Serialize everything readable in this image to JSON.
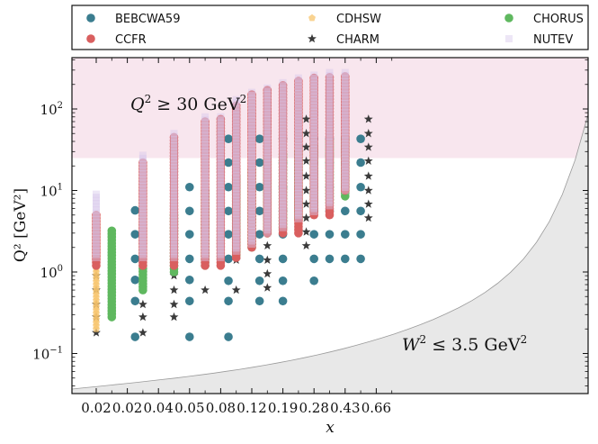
{
  "chart_data": {
    "type": "scatter",
    "xlabel": "x",
    "ylabel": "Q² [GeV²]",
    "yscale": "log",
    "ylim": [
      0.035,
      400
    ],
    "y_ticks": [
      {
        "value": 0.1,
        "base": "10",
        "exp": "−1"
      },
      {
        "value": 1,
        "base": "10",
        "exp": "0"
      },
      {
        "value": 10,
        "base": "10",
        "exp": "1"
      },
      {
        "value": 100,
        "base": "10",
        "exp": "2"
      }
    ],
    "x_categories": [
      "0.02",
      "0.02",
      "0.04",
      "0.05",
      "0.08",
      "0.12",
      "0.19",
      "0.28",
      "0.43",
      "0.66"
    ],
    "x_category_count": 20,
    "annotations": {
      "upper": {
        "lhs": "Q",
        "sup": "2",
        "rel": " ≥ 30 GeV",
        "sup2": "2"
      },
      "lower": {
        "lhs": "W",
        "sup": "2",
        "rel": " ≤ 3.5 GeV",
        "sup2": "2"
      }
    },
    "shaded_regions": [
      {
        "name": "Q2 >= 30",
        "y_min": 25,
        "color": "#f8e6ee"
      },
      {
        "name": "W2 <= 3.5",
        "bound": "W2 = 3.5 GeV2",
        "color": "#e8e8e8"
      }
    ],
    "series": [
      {
        "name": "BEBCWA59",
        "color": "#3b7d8f",
        "marker": "circle",
        "points": [
          [
            2.5,
            5.7
          ],
          [
            2.5,
            2.9
          ],
          [
            2.5,
            1.45
          ],
          [
            2.5,
            0.8
          ],
          [
            2.5,
            0.44
          ],
          [
            2.5,
            0.16
          ],
          [
            6,
            11
          ],
          [
            6,
            5.6
          ],
          [
            6,
            2.9
          ],
          [
            6,
            1.45
          ],
          [
            6,
            0.8
          ],
          [
            6,
            0.44
          ],
          [
            6,
            0.16
          ],
          [
            8.5,
            43
          ],
          [
            8.5,
            22
          ],
          [
            8.5,
            11
          ],
          [
            8.5,
            5.6
          ],
          [
            8.5,
            2.9
          ],
          [
            8.5,
            1.45
          ],
          [
            8.5,
            0.78
          ],
          [
            8.5,
            0.44
          ],
          [
            8.5,
            0.16
          ],
          [
            10.5,
            43
          ],
          [
            10.5,
            22
          ],
          [
            10.5,
            11
          ],
          [
            10.5,
            5.6
          ],
          [
            10.5,
            2.9
          ],
          [
            10.5,
            1.45
          ],
          [
            10.5,
            0.78
          ],
          [
            10.5,
            0.44
          ],
          [
            12,
            43
          ],
          [
            12,
            22
          ],
          [
            12,
            11
          ],
          [
            12,
            5.6
          ],
          [
            12,
            2.9
          ],
          [
            12,
            1.45
          ],
          [
            12,
            0.78
          ],
          [
            12,
            0.44
          ],
          [
            14,
            43
          ],
          [
            14,
            22
          ],
          [
            14,
            11
          ],
          [
            14,
            5.6
          ],
          [
            14,
            2.9
          ],
          [
            14,
            1.45
          ],
          [
            14,
            0.78
          ],
          [
            15,
            43
          ],
          [
            15,
            22
          ],
          [
            15,
            11
          ],
          [
            15,
            5.6
          ],
          [
            15,
            2.9
          ],
          [
            15,
            1.45
          ],
          [
            16,
            43
          ],
          [
            16,
            22
          ],
          [
            16,
            11
          ],
          [
            16,
            5.6
          ],
          [
            16,
            2.9
          ],
          [
            16,
            1.45
          ],
          [
            17,
            43
          ],
          [
            17,
            22
          ],
          [
            17,
            11
          ],
          [
            17,
            5.6
          ],
          [
            17,
            2.9
          ],
          [
            17,
            1.45
          ]
        ]
      },
      {
        "name": "CCFR",
        "color": "#d95f5f",
        "marker": "circle",
        "columns": [
          [
            0,
            1.2,
            5.0
          ],
          [
            3,
            1.2,
            22
          ],
          [
            5,
            1.2,
            45
          ],
          [
            7,
            1.2,
            70
          ],
          [
            8,
            1.2,
            75
          ],
          [
            9,
            1.5,
            110
          ],
          [
            10,
            2.0,
            150
          ],
          [
            11,
            3.0,
            170
          ],
          [
            12,
            3.0,
            195
          ],
          [
            13,
            3.0,
            220
          ],
          [
            14,
            5.0,
            240
          ],
          [
            15,
            5.0,
            245
          ],
          [
            16,
            10,
            250
          ]
        ]
      },
      {
        "name": "CDHSW",
        "color": "#f7c46c",
        "marker": "pentagon",
        "columns": [
          [
            0,
            0.2,
            5.0
          ],
          [
            3,
            0.7,
            20
          ]
        ]
      },
      {
        "name": "CHARM",
        "color": "#3a3a3a",
        "marker": "star",
        "points": [
          [
            0,
            0.9
          ],
          [
            0,
            0.6
          ],
          [
            0,
            0.4
          ],
          [
            0,
            0.28
          ],
          [
            0,
            0.18
          ],
          [
            3,
            0.9
          ],
          [
            3,
            0.6
          ],
          [
            3,
            0.4
          ],
          [
            3,
            0.28
          ],
          [
            3,
            0.18
          ],
          [
            5,
            0.9
          ],
          [
            5,
            0.6
          ],
          [
            5,
            0.4
          ],
          [
            5,
            0.28
          ],
          [
            7,
            2.8
          ],
          [
            7,
            1.4
          ],
          [
            7,
            0.6
          ],
          [
            9,
            3.0
          ],
          [
            9,
            1.4
          ],
          [
            9,
            0.6
          ],
          [
            11,
            50
          ],
          [
            11,
            34
          ],
          [
            11,
            23
          ],
          [
            11,
            15
          ],
          [
            11,
            10
          ],
          [
            11,
            6.8
          ],
          [
            11,
            4.6
          ],
          [
            11,
            3.1
          ],
          [
            11,
            2.1
          ],
          [
            11,
            1.4
          ],
          [
            11,
            0.95
          ],
          [
            11,
            0.64
          ],
          [
            13.5,
            75
          ],
          [
            13.5,
            50
          ],
          [
            13.5,
            34
          ],
          [
            13.5,
            23
          ],
          [
            13.5,
            15
          ],
          [
            13.5,
            10
          ],
          [
            13.5,
            6.8
          ],
          [
            13.5,
            4.6
          ],
          [
            13.5,
            3.1
          ],
          [
            13.5,
            2.1
          ],
          [
            17.5,
            75
          ],
          [
            17.5,
            50
          ],
          [
            17.5,
            34
          ],
          [
            17.5,
            23
          ],
          [
            17.5,
            15
          ],
          [
            17.5,
            10
          ],
          [
            17.5,
            6.8
          ],
          [
            17.5,
            4.6
          ]
        ]
      },
      {
        "name": "CHORUS",
        "color": "#5fb85f",
        "marker": "circle",
        "columns": [
          [
            1,
            0.28,
            3.2
          ],
          [
            3,
            0.6,
            1.2
          ],
          [
            5,
            1.0,
            5
          ],
          [
            7,
            1.2,
            10
          ],
          [
            9,
            1.6,
            15
          ],
          [
            10,
            2.0,
            18
          ],
          [
            11,
            3.0,
            25
          ],
          [
            12,
            3.5,
            28
          ],
          [
            13,
            4.5,
            30
          ],
          [
            14,
            6.0,
            35
          ],
          [
            15,
            7.0,
            40
          ],
          [
            16,
            8.5,
            45
          ]
        ]
      },
      {
        "name": "NUTEV",
        "color": "#d8c8ec",
        "marker": "square",
        "columns": [
          [
            0,
            1.5,
            9
          ],
          [
            3,
            1.5,
            27
          ],
          [
            5,
            1.5,
            50
          ],
          [
            7,
            1.5,
            80
          ],
          [
            8,
            1.5,
            80
          ],
          [
            9,
            1.8,
            130
          ],
          [
            10,
            2.2,
            160
          ],
          [
            11,
            3.0,
            180
          ],
          [
            12,
            3.5,
            210
          ],
          [
            13,
            4.5,
            240
          ],
          [
            14,
            5.5,
            260
          ],
          [
            15,
            6.5,
            280
          ],
          [
            16,
            10,
            280
          ]
        ]
      }
    ]
  }
}
